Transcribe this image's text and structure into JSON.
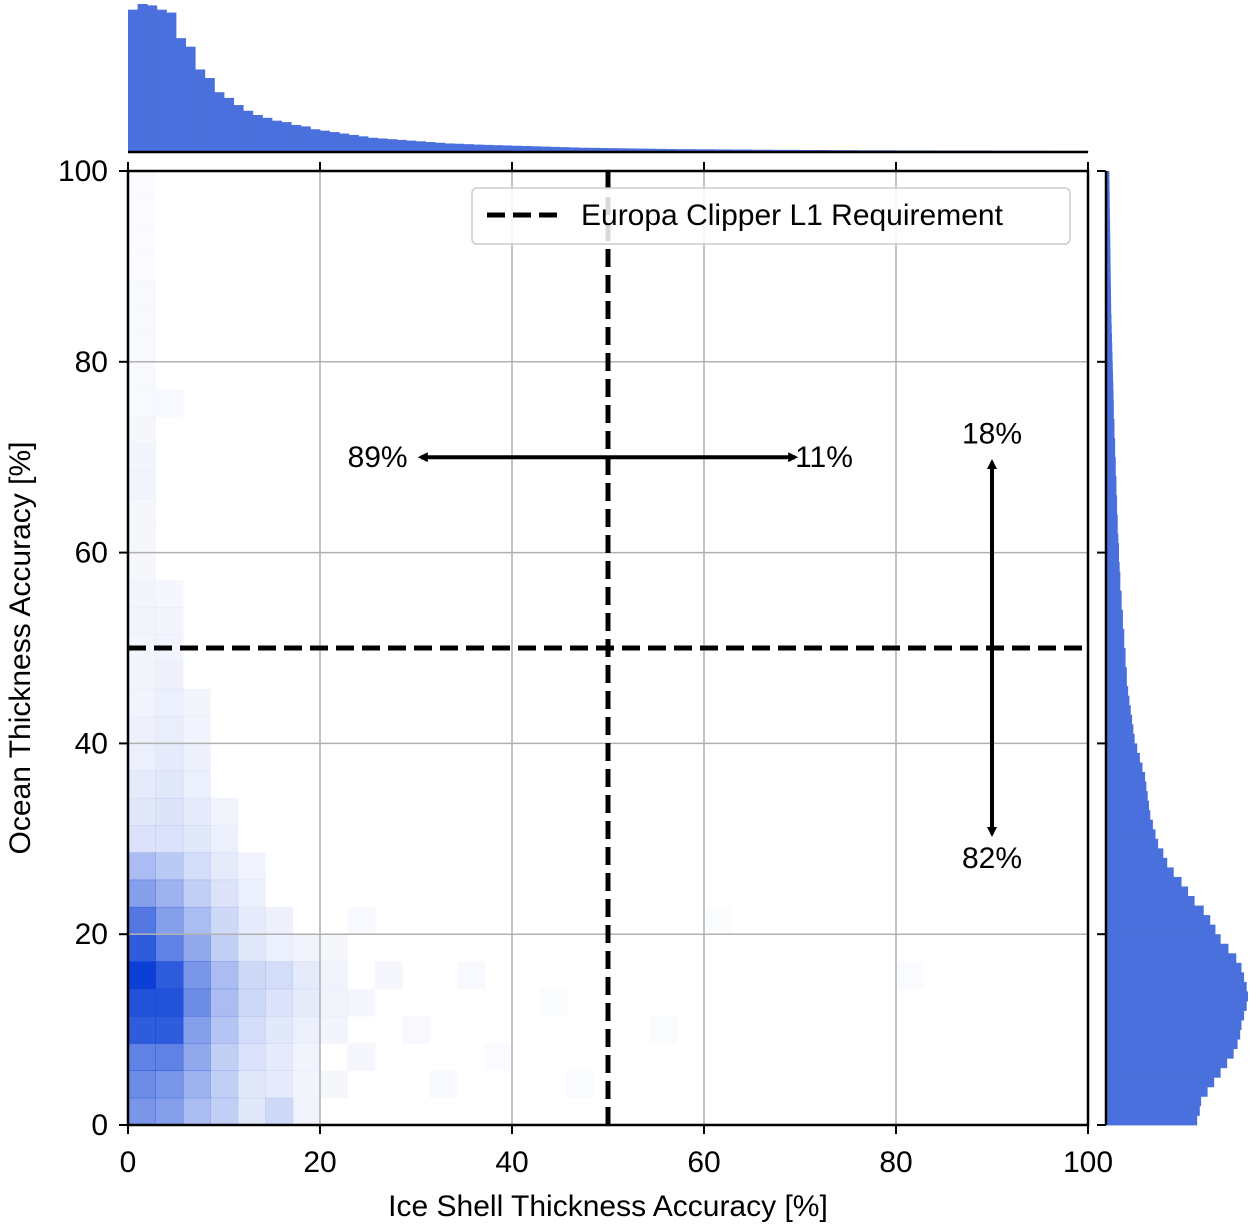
{
  "chart_data": {
    "type": "heatmap",
    "title": "",
    "xlabel": "Ice Shell Thickness Accuracy [%]",
    "ylabel": "Ocean Thickness Accuracy [%]",
    "xlim": [
      0,
      100
    ],
    "ylim": [
      0,
      100
    ],
    "xticks": [
      "0",
      "20",
      "40",
      "60",
      "80",
      "100"
    ],
    "yticks": [
      "0",
      "20",
      "40",
      "60",
      "80",
      "100"
    ],
    "grid": true,
    "legend": {
      "placement": "top-right",
      "label": "Europa Clipper L1 Requirement"
    },
    "colors": {
      "hist": "#4a70dd",
      "heat_max": "#0b3fd6",
      "grid": "#b0b0b0"
    },
    "requirement_lines": {
      "x": 50,
      "y": 50
    },
    "annotations": [
      {
        "id": "ice-below",
        "text": "89%",
        "x": 26,
        "y": 70
      },
      {
        "id": "ice-above",
        "text": "11%",
        "x": 72.5,
        "y": 70
      },
      {
        "id": "ocean-above",
        "text": "18%",
        "x": 90,
        "y": 72.5
      },
      {
        "id": "ocean-below",
        "text": "82%",
        "x": 90,
        "y": 28
      }
    ],
    "arrows": [
      {
        "id": "horizontal-arrow",
        "from": [
          30.5,
          70
        ],
        "to": [
          69.5,
          70
        ]
      },
      {
        "id": "vertical-arrow",
        "from": [
          90,
          69.5
        ],
        "to": [
          90,
          30.5
        ]
      }
    ],
    "heatmap": {
      "bin_width_x": 2.86,
      "bin_width_y": 2.86,
      "cells": [
        {
          "x": 0,
          "y": 0,
          "v": 0.55
        },
        {
          "x": 2.86,
          "y": 0,
          "v": 0.5
        },
        {
          "x": 5.71,
          "y": 0,
          "v": 0.35
        },
        {
          "x": 8.57,
          "y": 0,
          "v": 0.25
        },
        {
          "x": 11.43,
          "y": 0,
          "v": 0.12
        },
        {
          "x": 14.29,
          "y": 0,
          "v": 0.2
        },
        {
          "x": 17.14,
          "y": 0,
          "v": 0.06
        },
        {
          "x": 0,
          "y": 2.86,
          "v": 0.6
        },
        {
          "x": 2.86,
          "y": 2.86,
          "v": 0.55
        },
        {
          "x": 5.71,
          "y": 2.86,
          "v": 0.4
        },
        {
          "x": 8.57,
          "y": 2.86,
          "v": 0.25
        },
        {
          "x": 11.43,
          "y": 2.86,
          "v": 0.12
        },
        {
          "x": 14.29,
          "y": 2.86,
          "v": 0.1
        },
        {
          "x": 17.14,
          "y": 2.86,
          "v": 0.05
        },
        {
          "x": 0,
          "y": 5.71,
          "v": 0.65
        },
        {
          "x": 2.86,
          "y": 5.71,
          "v": 0.65
        },
        {
          "x": 5.71,
          "y": 5.71,
          "v": 0.45
        },
        {
          "x": 8.57,
          "y": 5.71,
          "v": 0.25
        },
        {
          "x": 11.43,
          "y": 5.71,
          "v": 0.15
        },
        {
          "x": 14.29,
          "y": 5.71,
          "v": 0.1
        },
        {
          "x": 17.14,
          "y": 5.71,
          "v": 0.06
        },
        {
          "x": 0,
          "y": 8.57,
          "v": 0.85
        },
        {
          "x": 2.86,
          "y": 8.57,
          "v": 0.85
        },
        {
          "x": 5.71,
          "y": 8.57,
          "v": 0.5
        },
        {
          "x": 8.57,
          "y": 8.57,
          "v": 0.3
        },
        {
          "x": 11.43,
          "y": 8.57,
          "v": 0.18
        },
        {
          "x": 14.29,
          "y": 8.57,
          "v": 0.12
        },
        {
          "x": 17.14,
          "y": 8.57,
          "v": 0.08
        },
        {
          "x": 0,
          "y": 11.43,
          "v": 0.9
        },
        {
          "x": 2.86,
          "y": 11.43,
          "v": 0.9
        },
        {
          "x": 5.71,
          "y": 11.43,
          "v": 0.6
        },
        {
          "x": 8.57,
          "y": 11.43,
          "v": 0.35
        },
        {
          "x": 11.43,
          "y": 11.43,
          "v": 0.2
        },
        {
          "x": 14.29,
          "y": 11.43,
          "v": 0.15
        },
        {
          "x": 17.14,
          "y": 11.43,
          "v": 0.1
        },
        {
          "x": 20,
          "y": 11.43,
          "v": 0.06
        },
        {
          "x": 0,
          "y": 14.29,
          "v": 1.0
        },
        {
          "x": 2.86,
          "y": 14.29,
          "v": 0.85
        },
        {
          "x": 5.71,
          "y": 14.29,
          "v": 0.55
        },
        {
          "x": 8.57,
          "y": 14.29,
          "v": 0.35
        },
        {
          "x": 11.43,
          "y": 14.29,
          "v": 0.2
        },
        {
          "x": 14.29,
          "y": 14.29,
          "v": 0.18
        },
        {
          "x": 17.14,
          "y": 14.29,
          "v": 0.1
        },
        {
          "x": 20,
          "y": 14.29,
          "v": 0.06
        },
        {
          "x": 0,
          "y": 17.14,
          "v": 0.85
        },
        {
          "x": 2.86,
          "y": 17.14,
          "v": 0.65
        },
        {
          "x": 5.71,
          "y": 17.14,
          "v": 0.45
        },
        {
          "x": 8.57,
          "y": 17.14,
          "v": 0.25
        },
        {
          "x": 11.43,
          "y": 17.14,
          "v": 0.12
        },
        {
          "x": 14.29,
          "y": 17.14,
          "v": 0.08
        },
        {
          "x": 17.14,
          "y": 17.14,
          "v": 0.06
        },
        {
          "x": 0,
          "y": 20,
          "v": 0.7
        },
        {
          "x": 2.86,
          "y": 20,
          "v": 0.5
        },
        {
          "x": 5.71,
          "y": 20,
          "v": 0.35
        },
        {
          "x": 8.57,
          "y": 20,
          "v": 0.2
        },
        {
          "x": 11.43,
          "y": 20,
          "v": 0.1
        },
        {
          "x": 14.29,
          "y": 20,
          "v": 0.07
        },
        {
          "x": 0,
          "y": 22.86,
          "v": 0.5
        },
        {
          "x": 2.86,
          "y": 22.86,
          "v": 0.4
        },
        {
          "x": 5.71,
          "y": 22.86,
          "v": 0.25
        },
        {
          "x": 8.57,
          "y": 22.86,
          "v": 0.15
        },
        {
          "x": 11.43,
          "y": 22.86,
          "v": 0.08
        },
        {
          "x": 0,
          "y": 25.71,
          "v": 0.35
        },
        {
          "x": 2.86,
          "y": 25.71,
          "v": 0.28
        },
        {
          "x": 5.71,
          "y": 25.71,
          "v": 0.18
        },
        {
          "x": 8.57,
          "y": 25.71,
          "v": 0.1
        },
        {
          "x": 11.43,
          "y": 25.71,
          "v": 0.06
        },
        {
          "x": 0,
          "y": 28.57,
          "v": 0.15
        },
        {
          "x": 2.86,
          "y": 28.57,
          "v": 0.15
        },
        {
          "x": 5.71,
          "y": 28.57,
          "v": 0.12
        },
        {
          "x": 8.57,
          "y": 28.57,
          "v": 0.08
        },
        {
          "x": 0,
          "y": 31.43,
          "v": 0.12
        },
        {
          "x": 2.86,
          "y": 31.43,
          "v": 0.14
        },
        {
          "x": 5.71,
          "y": 31.43,
          "v": 0.1
        },
        {
          "x": 8.57,
          "y": 31.43,
          "v": 0.06
        },
        {
          "x": 0,
          "y": 34.29,
          "v": 0.1
        },
        {
          "x": 2.86,
          "y": 34.29,
          "v": 0.12
        },
        {
          "x": 5.71,
          "y": 34.29,
          "v": 0.08
        },
        {
          "x": 0,
          "y": 37.14,
          "v": 0.08
        },
        {
          "x": 2.86,
          "y": 37.14,
          "v": 0.1
        },
        {
          "x": 5.71,
          "y": 37.14,
          "v": 0.07
        },
        {
          "x": 0,
          "y": 40,
          "v": 0.07
        },
        {
          "x": 2.86,
          "y": 40,
          "v": 0.09
        },
        {
          "x": 5.71,
          "y": 40,
          "v": 0.06
        },
        {
          "x": 0,
          "y": 42.86,
          "v": 0.06
        },
        {
          "x": 2.86,
          "y": 42.86,
          "v": 0.08
        },
        {
          "x": 5.71,
          "y": 42.86,
          "v": 0.05
        },
        {
          "x": 0,
          "y": 45.71,
          "v": 0.05
        },
        {
          "x": 2.86,
          "y": 45.71,
          "v": 0.07
        },
        {
          "x": 0,
          "y": 48.57,
          "v": 0.05
        },
        {
          "x": 2.86,
          "y": 48.57,
          "v": 0.06
        },
        {
          "x": 0,
          "y": 51.43,
          "v": 0.06
        },
        {
          "x": 2.86,
          "y": 51.43,
          "v": 0.05
        },
        {
          "x": 0,
          "y": 54.29,
          "v": 0.05
        },
        {
          "x": 2.86,
          "y": 54.29,
          "v": 0.04
        },
        {
          "x": 0,
          "y": 57.14,
          "v": 0.04
        },
        {
          "x": 0,
          "y": 60,
          "v": 0.04
        },
        {
          "x": 0,
          "y": 62.86,
          "v": 0.04
        },
        {
          "x": 0,
          "y": 65.71,
          "v": 0.05
        },
        {
          "x": 0,
          "y": 68.57,
          "v": 0.05
        },
        {
          "x": 0,
          "y": 71.43,
          "v": 0.04
        },
        {
          "x": 0,
          "y": 74.29,
          "v": 0.03
        },
        {
          "x": 2.86,
          "y": 74.29,
          "v": 0.03
        },
        {
          "x": 0,
          "y": 77.14,
          "v": 0.03
        },
        {
          "x": 0,
          "y": 80,
          "v": 0.03
        },
        {
          "x": 0,
          "y": 82.86,
          "v": 0.03
        },
        {
          "x": 0,
          "y": 85.71,
          "v": 0.03
        },
        {
          "x": 0,
          "y": 88.57,
          "v": 0.02
        },
        {
          "x": 0,
          "y": 91.43,
          "v": 0.02
        },
        {
          "x": 0,
          "y": 94.29,
          "v": 0.02
        },
        {
          "x": 0,
          "y": 97.14,
          "v": 0.02
        },
        {
          "x": 20,
          "y": 2.86,
          "v": 0.04
        },
        {
          "x": 22.86,
          "y": 5.71,
          "v": 0.04
        },
        {
          "x": 20,
          "y": 8.57,
          "v": 0.05
        },
        {
          "x": 22.86,
          "y": 11.43,
          "v": 0.04
        },
        {
          "x": 25.71,
          "y": 14.29,
          "v": 0.04
        },
        {
          "x": 20,
          "y": 17.14,
          "v": 0.04
        },
        {
          "x": 22.86,
          "y": 20,
          "v": 0.03
        },
        {
          "x": 28.57,
          "y": 8.57,
          "v": 0.03
        },
        {
          "x": 31.43,
          "y": 2.86,
          "v": 0.03
        },
        {
          "x": 34.29,
          "y": 14.29,
          "v": 0.03
        },
        {
          "x": 37.14,
          "y": 5.71,
          "v": 0.02
        },
        {
          "x": 42.86,
          "y": 11.43,
          "v": 0.02
        },
        {
          "x": 45.71,
          "y": 2.86,
          "v": 0.02
        },
        {
          "x": 54.29,
          "y": 8.57,
          "v": 0.02
        },
        {
          "x": 80,
          "y": 14.29,
          "v": 0.02
        },
        {
          "x": 60,
          "y": 20,
          "v": 0.015
        }
      ]
    },
    "top_histogram": {
      "bin_width": 1,
      "x_start": 0,
      "values": [
        100,
        104,
        103,
        100,
        98,
        80,
        74,
        58,
        52,
        42,
        38,
        33,
        29,
        26,
        24,
        22,
        21,
        19,
        18,
        16,
        15,
        14,
        13,
        12,
        11,
        10,
        9.5,
        9,
        8.5,
        8,
        7.5,
        7,
        6.5,
        6,
        5.8,
        5.5,
        5.2,
        5,
        4.8,
        4.6,
        4.4,
        4.2,
        4,
        3.8,
        3.6,
        3.4,
        3.2,
        3,
        2.9,
        2.8,
        2.7,
        2.6,
        2.5,
        2.4,
        2.3,
        2.2,
        2.1,
        2,
        2,
        1.9,
        1.9,
        1.8,
        1.8,
        1.7,
        1.7,
        1.6,
        1.6,
        1.5,
        1.5,
        1.5,
        1.4,
        1.4,
        1.4,
        1.3,
        1.3,
        1.3,
        1.2,
        1.2,
        1.2,
        1.2,
        1.1,
        1.1,
        1.1,
        1.1,
        1,
        1,
        1,
        1,
        1,
        1,
        0.9,
        0.9,
        0.9,
        0.9,
        0.9,
        0.9,
        0.8,
        0.8,
        0.8,
        0.8
      ]
    },
    "right_histogram": {
      "bin_width": 1,
      "y_start": 0,
      "values": [
        70,
        72,
        73,
        78,
        83,
        88,
        93,
        98,
        101,
        103,
        104,
        106,
        108,
        109,
        108,
        106,
        104,
        100,
        94,
        88,
        84,
        80,
        75,
        68,
        63,
        58,
        52,
        47,
        44,
        40,
        38,
        36,
        34,
        33,
        32,
        31,
        30,
        28,
        26,
        24,
        22,
        21,
        20,
        19,
        18,
        17,
        16,
        16,
        15,
        15,
        14,
        14,
        13,
        13,
        12,
        12,
        11,
        11,
        10.5,
        10,
        10,
        9.5,
        9,
        9,
        8.5,
        8.5,
        8,
        8,
        7.5,
        7.5,
        7,
        7,
        6.5,
        6.5,
        6,
        6,
        5.8,
        5.6,
        5.4,
        5.2,
        5,
        4.8,
        4.6,
        4.4,
        4.2,
        4,
        3.9,
        3.8,
        3.7,
        3.6,
        3.5,
        3.4,
        3.3,
        3.2,
        3.1,
        3,
        2.9,
        2.8,
        2.7,
        2.6
      ]
    }
  }
}
